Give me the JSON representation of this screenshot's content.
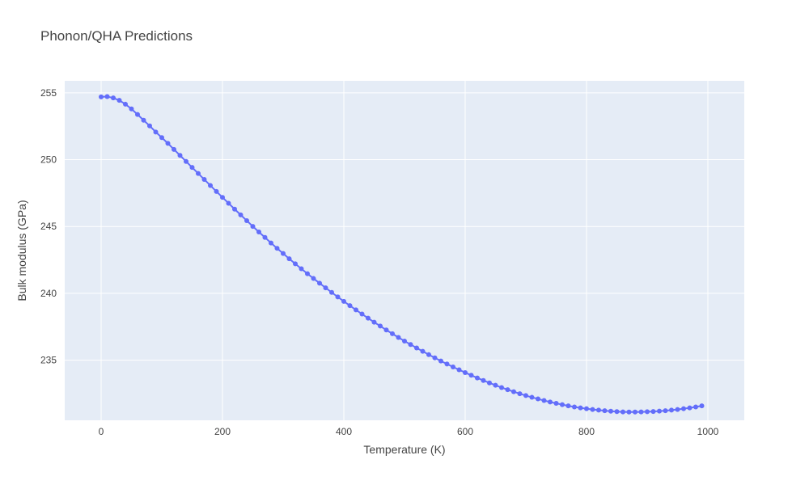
{
  "chart_data": {
    "type": "line",
    "title": "Phonon/QHA Predictions",
    "xlabel": "Temperature (K)",
    "ylabel": "Bulk modulus (GPa)",
    "xlim": [
      -60,
      1060
    ],
    "ylim": [
      230.5,
      255.9
    ],
    "x_ticks": [
      0,
      200,
      400,
      600,
      800,
      1000
    ],
    "y_ticks": [
      235,
      240,
      245,
      250,
      255
    ],
    "grid": true,
    "legend": "none",
    "colors": {
      "plot_bg": "#e5ecf6",
      "grid": "#ffffff",
      "series": "#636efa",
      "text": "#444444",
      "title": "#444444"
    },
    "series": [
      {
        "x": [
          0,
          10,
          20,
          30,
          40,
          50,
          60,
          70,
          80,
          90,
          100,
          110,
          120,
          130,
          140,
          150,
          160,
          170,
          180,
          190,
          200,
          210,
          220,
          230,
          240,
          250,
          260,
          270,
          280,
          290,
          300,
          310,
          320,
          330,
          340,
          350,
          360,
          370,
          380,
          390,
          400,
          410,
          420,
          430,
          440,
          450,
          460,
          470,
          480,
          490,
          500,
          510,
          520,
          530,
          540,
          550,
          560,
          570,
          580,
          590,
          600,
          610,
          620,
          630,
          640,
          650,
          660,
          670,
          680,
          690,
          700,
          710,
          720,
          730,
          740,
          750,
          760,
          770,
          780,
          790,
          800,
          810,
          820,
          830,
          840,
          850,
          860,
          870,
          880,
          890,
          900,
          910,
          920,
          930,
          940,
          950,
          960,
          970,
          980,
          990
        ],
        "y": [
          254.7,
          254.72,
          254.62,
          254.44,
          254.15,
          253.8,
          253.38,
          252.95,
          252.53,
          252.07,
          251.65,
          251.22,
          250.77,
          250.32,
          249.87,
          249.42,
          248.97,
          248.52,
          248.07,
          247.62,
          247.18,
          246.74,
          246.3,
          245.87,
          245.44,
          245.01,
          244.59,
          244.18,
          243.77,
          243.37,
          242.98,
          242.59,
          242.21,
          241.84,
          241.47,
          241.11,
          240.76,
          240.41,
          240.07,
          239.73,
          239.4,
          239.08,
          238.76,
          238.45,
          238.14,
          237.84,
          237.55,
          237.26,
          236.98,
          236.7,
          236.43,
          236.17,
          235.91,
          235.66,
          235.41,
          235.17,
          234.94,
          234.71,
          234.49,
          234.28,
          234.07,
          233.87,
          233.67,
          233.48,
          233.3,
          233.12,
          232.95,
          232.79,
          232.64,
          232.49,
          232.35,
          232.22,
          232.1,
          231.98,
          231.87,
          231.77,
          231.67,
          231.58,
          231.5,
          231.43,
          231.37,
          231.31,
          231.26,
          231.22,
          231.18,
          231.15,
          231.13,
          231.12,
          231.12,
          231.13,
          231.14,
          231.16,
          231.19,
          231.22,
          231.26,
          231.31,
          231.37,
          231.43,
          231.5,
          231.58
        ]
      }
    ]
  }
}
